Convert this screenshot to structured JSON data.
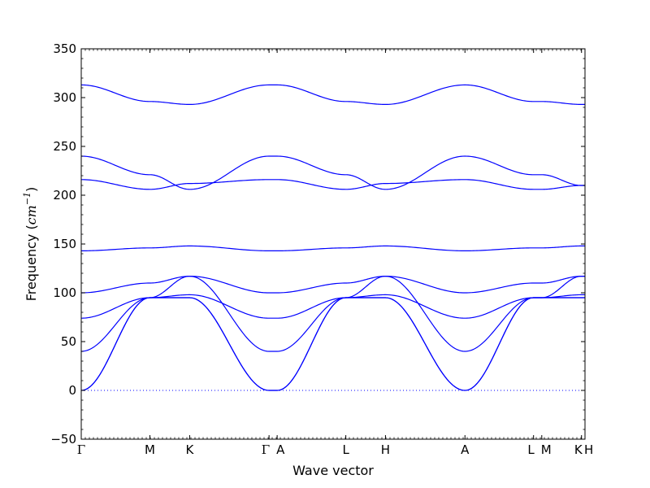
{
  "chart_data": {
    "type": "line",
    "title": "",
    "xlabel": "Wave vector",
    "ylabel": "Frequency",
    "ylabel_unit": "cm",
    "ylabel_exponent": "−1",
    "ylim": [
      -50,
      350
    ],
    "yticks": [
      -50,
      0,
      50,
      100,
      150,
      200,
      250,
      300,
      350
    ],
    "ytick_labels": [
      "−50",
      "0",
      "50",
      "100",
      "150",
      "200",
      "250",
      "300",
      "350"
    ],
    "xlim": [
      0,
      1
    ],
    "high_symmetry_points": [
      {
        "label": "Γ",
        "x": 0.0
      },
      {
        "label": "M",
        "x": 0.1363
      },
      {
        "label": "K",
        "x": 0.2152
      },
      {
        "label": "Γ",
        "x": 0.3728
      },
      {
        "label": "A",
        "x": 0.3889
      },
      {
        "label": "L",
        "x": 0.5252
      },
      {
        "label": "H",
        "x": 0.6039
      },
      {
        "label": "A",
        "x": 0.7617
      },
      {
        "label": "L",
        "x": 0.8979
      },
      {
        "label": "M",
        "x": 0.9142
      },
      {
        "label": "K",
        "x": 0.9931
      },
      {
        "label": "H",
        "x": 1.0
      }
    ],
    "zero_line": {
      "y": 0,
      "style": "dotted"
    },
    "grid": false,
    "legend": "none",
    "line_color": "#0000ff",
    "bands": [
      {
        "values": [
          313,
          296,
          293,
          313,
          313,
          296,
          293,
          313,
          296,
          296,
          293,
          293
        ]
      },
      {
        "values": [
          240,
          221,
          206,
          240,
          240,
          221,
          206,
          240,
          221,
          221,
          210,
          210
        ]
      },
      {
        "values": [
          216,
          206,
          212,
          216,
          216,
          206,
          212,
          216,
          206,
          206,
          210,
          210
        ]
      },
      {
        "values": [
          143,
          146,
          148,
          143,
          143,
          146,
          148,
          143,
          146,
          146,
          148,
          148
        ]
      },
      {
        "values": [
          100,
          110,
          117,
          100,
          100,
          110,
          117,
          100,
          110,
          110,
          117,
          117
        ]
      },
      {
        "values": [
          74,
          95,
          98,
          74,
          74,
          95,
          98,
          74,
          95,
          95,
          98,
          98
        ]
      },
      {
        "values": [
          40,
          95,
          117,
          40,
          40,
          95,
          117,
          40,
          95,
          95,
          117,
          117
        ]
      },
      {
        "values": [
          0,
          95,
          95,
          0,
          0,
          95,
          95,
          0,
          95,
          95,
          95,
          95
        ]
      },
      {
        "values": [
          0,
          95,
          95,
          0,
          0,
          95,
          95,
          0,
          95,
          95,
          95,
          95
        ]
      }
    ]
  }
}
